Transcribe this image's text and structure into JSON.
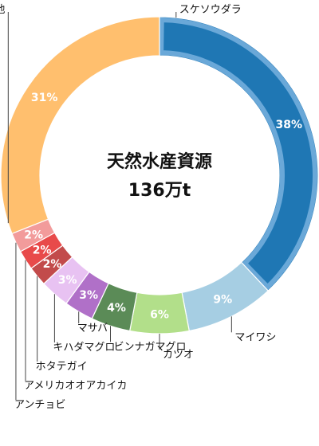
{
  "chart_data": {
    "type": "pie",
    "center_label": "天然水産資源",
    "center_value": "136万t",
    "colors": {
      "highlight_outline": "#6aa8d8",
      "slice_border": "#ffffff",
      "percent_text": "#ffffff",
      "label_text": "#111111"
    },
    "slices": [
      {
        "name": "スケソウダラ",
        "value": 38,
        "percent_label": "38%",
        "color": "#1f77b4",
        "highlight": true
      },
      {
        "name": "マイワシ",
        "value": 9,
        "percent_label": "9%",
        "color": "#a6cee3"
      },
      {
        "name": "カツオ",
        "value": 6,
        "percent_label": "6%",
        "color": "#b2df8a"
      },
      {
        "name": "ビンナガマグロ",
        "value": 4,
        "percent_label": "4%",
        "color": "#5b8b57"
      },
      {
        "name": "マサバ",
        "value": 3,
        "percent_label": "3%",
        "color": "#b070c8"
      },
      {
        "name": "キハダマグロ",
        "value": 3,
        "percent_label": "3%",
        "color": "#e8c2f2"
      },
      {
        "name": "ホタテガイ",
        "value": 2,
        "percent_label": "2%",
        "color": "#c24b4b"
      },
      {
        "name": "アメリカオオアカイカ",
        "value": 2,
        "percent_label": "2%",
        "color": "#e84a4a"
      },
      {
        "name": "アンチョビ",
        "value": 2,
        "percent_label": "2%",
        "color": "#f29b9b"
      },
      {
        "name": "その他",
        "value": 31,
        "percent_label": "31%",
        "color": "#ffbf6e"
      }
    ]
  }
}
